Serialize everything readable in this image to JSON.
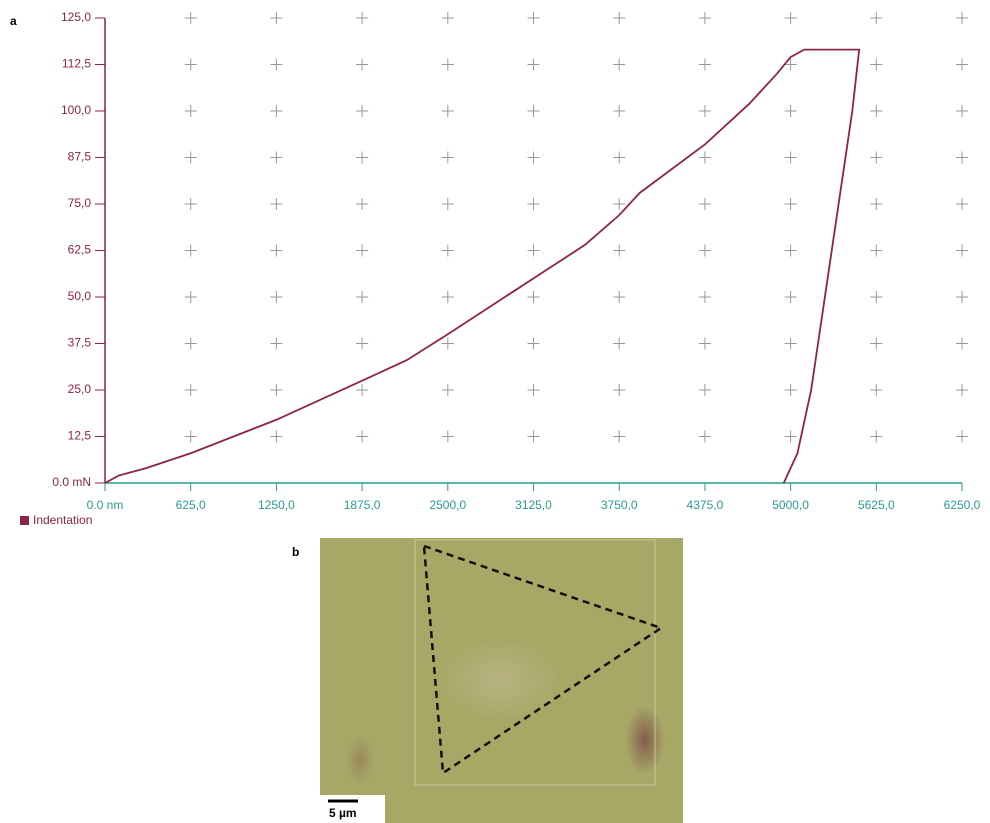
{
  "chart_data": {
    "type": "line",
    "series": [
      {
        "name": "Indentation",
        "color": "#8e2444",
        "x": [
          0,
          100,
          300,
          625,
          1250,
          1875,
          2200,
          2500,
          3125,
          3500,
          3750,
          3900,
          4375,
          4700,
          4900,
          5000,
          5100,
          5500,
          5450,
          5350,
          5250,
          5150,
          5050,
          4950
        ],
        "values": [
          0,
          2,
          4,
          8,
          17,
          27.5,
          33,
          40,
          55,
          64,
          72,
          78,
          91,
          102,
          110,
          114.5,
          116.5,
          116.5,
          100,
          75,
          50,
          25,
          8,
          0
        ]
      }
    ],
    "xlim": [
      0,
      6250
    ],
    "ylim": [
      0,
      125
    ],
    "xticks": [
      {
        "value": 0,
        "label": "0.0 nm"
      },
      {
        "value": 625,
        "label": "625,0"
      },
      {
        "value": 1250,
        "label": "1250,0"
      },
      {
        "value": 1875,
        "label": "1875,0"
      },
      {
        "value": 2500,
        "label": "2500,0"
      },
      {
        "value": 3125,
        "label": "3125,0"
      },
      {
        "value": 3750,
        "label": "3750,0"
      },
      {
        "value": 4375,
        "label": "4375,0"
      },
      {
        "value": 5000,
        "label": "5000,0"
      },
      {
        "value": 5625,
        "label": "5625,0"
      },
      {
        "value": 6250,
        "label": "6250,0"
      }
    ],
    "yticks": [
      {
        "value": 0,
        "label": "0.0 mN"
      },
      {
        "value": 12.5,
        "label": "12,5"
      },
      {
        "value": 25,
        "label": "25,0"
      },
      {
        "value": 37.5,
        "label": "37,5"
      },
      {
        "value": 50,
        "label": "50,0"
      },
      {
        "value": 62.5,
        "label": "62,5"
      },
      {
        "value": 75,
        "label": "75,0"
      },
      {
        "value": 87.5,
        "label": "87,5"
      },
      {
        "value": 100,
        "label": "100,0"
      },
      {
        "value": 112.5,
        "label": "112,5"
      },
      {
        "value": 125,
        "label": "125,0"
      }
    ],
    "grid": true,
    "legend": "bottom-left"
  },
  "panels": {
    "a": "a",
    "b": "b"
  },
  "image": {
    "scale_bar": "5 µm"
  }
}
